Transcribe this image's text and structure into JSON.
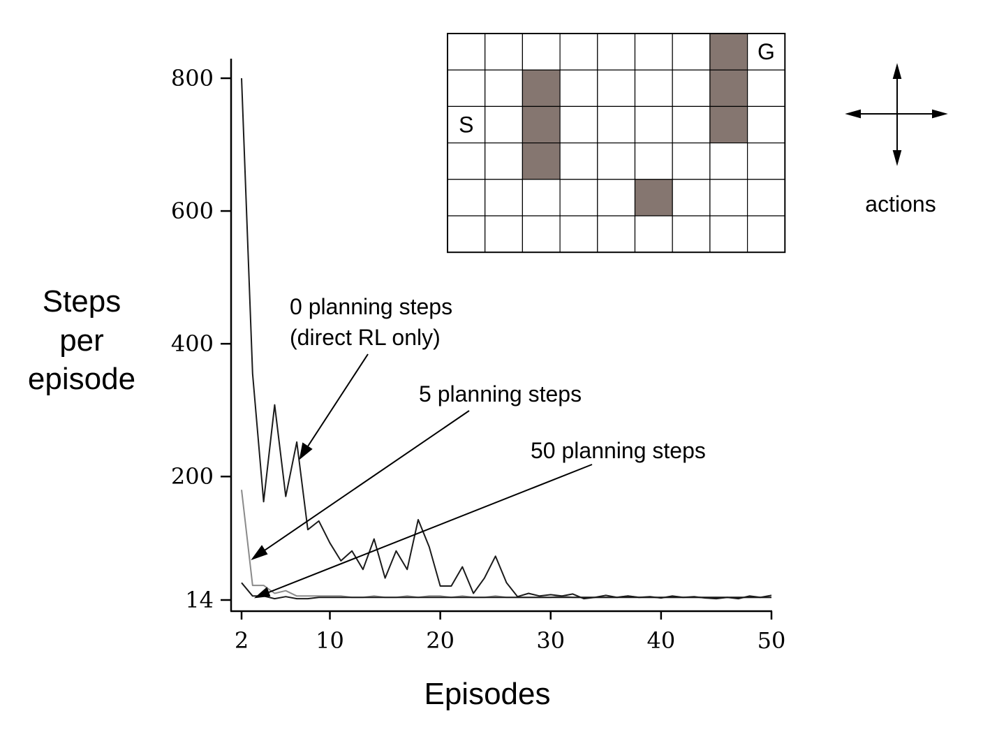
{
  "chart_data": {
    "type": "line",
    "xlabel": "Episodes",
    "ylabel_lines": [
      "Steps",
      "per",
      "episode"
    ],
    "xlim": [
      2,
      50
    ],
    "ylim": [
      14,
      800
    ],
    "x_ticks": [
      2,
      10,
      20,
      30,
      40,
      50
    ],
    "y_ticks": [
      14,
      200,
      400,
      600,
      800
    ],
    "grid": false,
    "series": [
      {
        "name": "0 planning steps",
        "color": "#1a1a1a",
        "x": [
          2,
          3,
          4,
          5,
          6,
          7,
          8,
          9,
          10,
          11,
          12,
          13,
          14,
          15,
          16,
          17,
          18,
          19,
          20,
          21,
          22,
          23,
          24,
          25,
          26,
          27,
          28,
          29,
          30,
          31,
          32,
          33,
          34,
          35,
          36,
          37,
          38,
          39,
          40,
          41,
          42,
          43,
          44,
          45,
          46,
          47,
          48,
          49,
          50
        ],
        "y": [
          800,
          355,
          162,
          308,
          170,
          252,
          120,
          133,
          100,
          73,
          88,
          60,
          106,
          47,
          88,
          60,
          135,
          94,
          35,
          35,
          64,
          24,
          47,
          80,
          40,
          19,
          24,
          20,
          22,
          20,
          23,
          16,
          18,
          21,
          18,
          20,
          18,
          19,
          17,
          20,
          18,
          19,
          17,
          16,
          18,
          16,
          20,
          18,
          21
        ]
      },
      {
        "name": "5 planning steps",
        "color": "#8a8a8a",
        "x": [
          2,
          3,
          4,
          5,
          6,
          7,
          8,
          9,
          10,
          11,
          12,
          13,
          14,
          15,
          16,
          17,
          18,
          19,
          20,
          21,
          22,
          23,
          24,
          25,
          26,
          27,
          28,
          29,
          30,
          31,
          32,
          33,
          34,
          35,
          36,
          37,
          38,
          39,
          40,
          41,
          42,
          43,
          44,
          45,
          46,
          47,
          48,
          49,
          50
        ],
        "y": [
          180,
          36,
          36,
          24,
          28,
          20,
          20,
          20,
          20,
          20,
          18,
          18,
          20,
          18,
          18,
          20,
          18,
          20,
          20,
          18,
          20,
          18,
          18,
          20,
          18,
          18,
          18,
          18,
          18,
          20,
          18,
          18,
          18,
          18,
          18,
          20,
          18,
          18,
          18,
          18,
          18,
          18,
          18,
          18,
          18,
          18,
          18,
          18,
          18
        ]
      },
      {
        "name": "50 planning steps",
        "color": "#1a1a1a",
        "x": [
          2,
          3,
          4,
          5,
          6,
          7,
          8,
          9,
          10,
          11,
          12,
          13,
          14,
          15,
          16,
          17,
          18,
          19,
          20,
          21,
          22,
          23,
          24,
          25,
          26,
          27,
          28,
          29,
          30,
          31,
          32,
          33,
          34,
          35,
          36,
          37,
          38,
          39,
          40,
          41,
          42,
          43,
          44,
          45,
          46,
          47,
          48,
          49,
          50
        ],
        "y": [
          40,
          20,
          20,
          16,
          19,
          16,
          16,
          18,
          18,
          18,
          18,
          18,
          18,
          18,
          18,
          18,
          18,
          18,
          18,
          18,
          18,
          18,
          18,
          18,
          18,
          18,
          18,
          18,
          18,
          18,
          18,
          18,
          18,
          18,
          18,
          18,
          18,
          18,
          18,
          18,
          18,
          18,
          18,
          18,
          18,
          18,
          18,
          18,
          18
        ]
      }
    ],
    "annotations": [
      {
        "lines": [
          "0 planning steps",
          "(direct RL only)"
        ],
        "points_to": {
          "series": 0,
          "x": 7,
          "y": 245
        }
      },
      {
        "lines": [
          "5 planning steps"
        ],
        "points_to": {
          "series": 1,
          "x": 3,
          "y": 65
        }
      },
      {
        "lines": [
          "50 planning steps"
        ],
        "points_to": {
          "series": 2,
          "x": 3,
          "y": 20
        }
      }
    ]
  },
  "maze": {
    "cols": 9,
    "rows": 6,
    "wall_color": "#857670",
    "walls": [
      [
        7,
        0
      ],
      [
        2,
        1
      ],
      [
        7,
        1
      ],
      [
        2,
        2
      ],
      [
        7,
        2
      ],
      [
        2,
        3
      ],
      [
        5,
        4
      ]
    ],
    "start": {
      "label": "S",
      "col": 0,
      "row": 2
    },
    "goal": {
      "label": "G",
      "col": 8,
      "row": 0
    }
  },
  "actions": {
    "label": "actions",
    "directions": [
      "up",
      "down",
      "left",
      "right"
    ]
  }
}
